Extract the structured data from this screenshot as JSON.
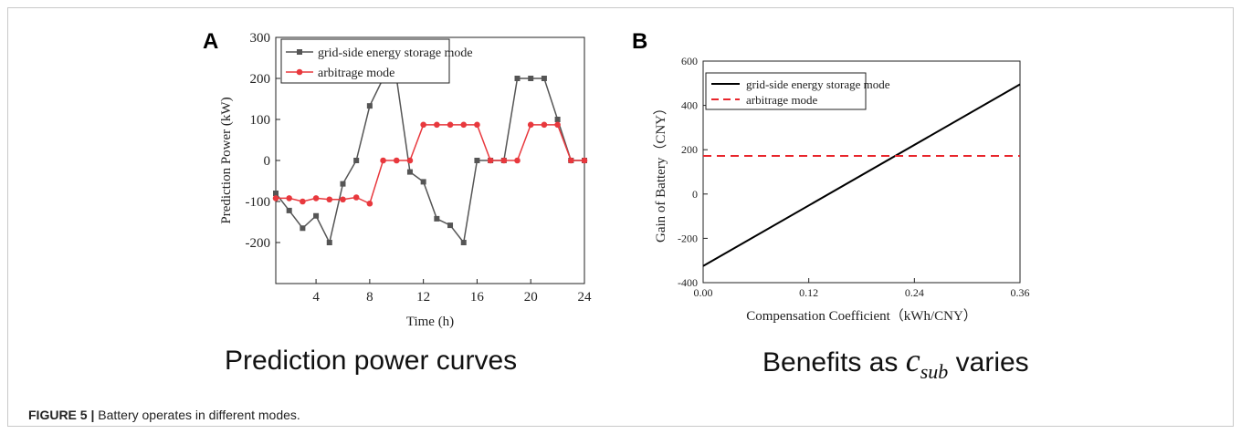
{
  "panel_a_letter": "A",
  "panel_b_letter": "B",
  "panel_a_caption": "Prediction power curves",
  "panel_b_caption_prefix": "Benefits as",
  "panel_b_caption_symbol": "c",
  "panel_b_caption_subscript": "sub",
  "panel_b_caption_suffix": "varies",
  "figure_label": "FIGURE 5 |",
  "figure_caption": "Battery operates in different modes.",
  "colors": {
    "series_black": "#555555",
    "series_red": "#e8383d",
    "line_b_black": "#000000",
    "line_b_red": "#e8262c"
  },
  "chart_data": [
    {
      "type": "line",
      "xlabel": "Time (h)",
      "ylabel": "Prediction Power (kW)",
      "xlim": [
        1,
        24
      ],
      "ylim": [
        -300,
        300
      ],
      "xticks": [
        4,
        8,
        12,
        16,
        20,
        24
      ],
      "yticks": [
        -200,
        -100,
        0,
        100,
        200,
        300
      ],
      "legend_position": "top-left",
      "x": [
        1,
        2,
        3,
        4,
        5,
        6,
        7,
        8,
        9,
        10,
        11,
        12,
        13,
        14,
        15,
        16,
        17,
        18,
        19,
        20,
        21,
        22,
        23,
        24
      ],
      "series": [
        {
          "name": "grid-side energy storage mode",
          "marker": "square",
          "color": "#555555",
          "values": [
            -80,
            -122,
            -165,
            -135,
            -200,
            -57,
            0,
            133,
            200,
            200,
            -28,
            -52,
            -142,
            -158,
            -200,
            0,
            0,
            0,
            200,
            200,
            200,
            100,
            0,
            0
          ]
        },
        {
          "name": "arbitrage mode",
          "marker": "circle",
          "color": "#e8383d",
          "values": [
            -92,
            -92,
            -100,
            -92,
            -95,
            -95,
            -90,
            -105,
            0,
            0,
            0,
            87,
            87,
            87,
            87,
            87,
            0,
            0,
            0,
            87,
            87,
            87,
            0,
            0
          ]
        }
      ]
    },
    {
      "type": "line",
      "xlabel": "Compensation Coefficient（kWh/CNY）",
      "ylabel": "Gain of Battery（CNY）",
      "xlim": [
        0,
        0.36
      ],
      "ylim": [
        -400,
        600
      ],
      "xticks": [
        "0.00",
        "0.12",
        "0.24",
        "0.36"
      ],
      "yticks": [
        -400,
        -200,
        0,
        200,
        400,
        600
      ],
      "legend_position": "top-left",
      "series": [
        {
          "name": "grid-side energy storage mode",
          "style": "solid",
          "color": "#000000",
          "x": [
            0,
            0.36
          ],
          "values": [
            -325,
            495
          ]
        },
        {
          "name": "arbitrage mode",
          "style": "dashed",
          "color": "#e8262c",
          "x": [
            0,
            0.36
          ],
          "values": [
            172,
            172
          ]
        }
      ]
    }
  ]
}
